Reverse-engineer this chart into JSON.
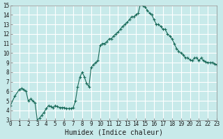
{
  "title": "",
  "xlabel": "Humidex (Indice chaleur)",
  "ylabel": "",
  "background_color": "#c8eaea",
  "grid_color": "#ffffff",
  "line_color": "#1a6b5a",
  "marker_color": "#1a6b5a",
  "xlim": [
    0,
    23
  ],
  "ylim": [
    3,
    15
  ],
  "yticks": [
    3,
    4,
    5,
    6,
    7,
    8,
    9,
    10,
    11,
    12,
    13,
    14,
    15
  ],
  "xticks": [
    0,
    1,
    2,
    3,
    4,
    5,
    6,
    7,
    8,
    9,
    10,
    11,
    12,
    13,
    14,
    15,
    16,
    17,
    18,
    19,
    20,
    21,
    22,
    23
  ],
  "x": [
    0,
    0.5,
    1,
    1.25,
    1.5,
    1.75,
    2,
    2.25,
    2.5,
    2.75,
    3,
    3.25,
    3.5,
    3.75,
    4,
    4.25,
    4.5,
    4.75,
    5,
    5.25,
    5.5,
    5.75,
    6,
    6.25,
    6.5,
    6.75,
    7,
    7.25,
    7.5,
    7.75,
    8,
    8.25,
    8.5,
    8.75,
    9,
    9.25,
    9.5,
    9.75,
    10,
    10.25,
    10.5,
    10.75,
    11,
    11.25,
    11.5,
    11.75,
    12,
    12.25,
    12.5,
    12.75,
    13,
    13.25,
    13.5,
    13.75,
    14,
    14.25,
    14.5,
    14.75,
    15,
    15.25,
    15.5,
    15.75,
    16,
    16.25,
    16.5,
    16.75,
    17,
    17.25,
    17.5,
    17.75,
    18,
    18.25,
    18.5,
    18.75,
    19,
    19.25,
    19.5,
    19.75,
    20,
    20.25,
    20.5,
    20.75,
    21,
    21.25,
    21.5,
    21.75,
    22,
    22.25,
    22.5,
    22.75,
    23
  ],
  "y": [
    4.5,
    5.5,
    6.2,
    6.3,
    6.2,
    6.0,
    5.0,
    5.2,
    5.0,
    4.8,
    3.0,
    3.2,
    3.5,
    3.8,
    4.2,
    4.5,
    4.4,
    4.3,
    4.5,
    4.4,
    4.3,
    4.3,
    4.3,
    4.2,
    4.2,
    4.2,
    4.3,
    5.0,
    6.5,
    7.5,
    8.0,
    7.5,
    6.8,
    6.5,
    8.5,
    8.8,
    9.0,
    9.2,
    10.8,
    11.0,
    11.0,
    11.2,
    11.5,
    11.5,
    11.8,
    12.0,
    12.2,
    12.5,
    12.8,
    13.0,
    13.2,
    13.5,
    13.8,
    13.8,
    14.0,
    14.2,
    15.2,
    15.0,
    14.8,
    14.5,
    14.2,
    14.0,
    13.5,
    13.0,
    13.0,
    12.8,
    12.5,
    12.5,
    12.0,
    11.8,
    11.5,
    11.0,
    10.5,
    10.2,
    10.0,
    9.8,
    9.5,
    9.5,
    9.3,
    9.2,
    9.5,
    9.5,
    9.2,
    9.5,
    9.2,
    9.1,
    9.0,
    9.0,
    9.0,
    8.9,
    8.8
  ]
}
